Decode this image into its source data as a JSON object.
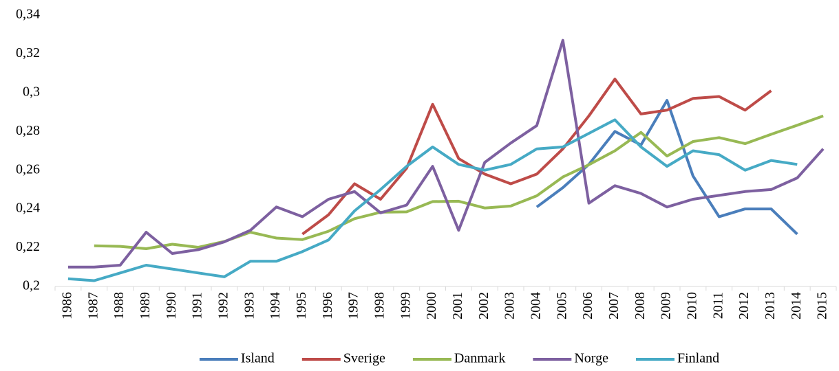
{
  "chart_data": {
    "type": "line",
    "categories": [
      "1986",
      "1987",
      "1988",
      "1989",
      "1990",
      "1991",
      "1992",
      "1993",
      "1994",
      "1995",
      "1996",
      "1997",
      "1998",
      "1999",
      "2000",
      "2001",
      "2002",
      "2003",
      "2004",
      "2005",
      "2006",
      "2007",
      "2008",
      "2009",
      "2010",
      "2011",
      "2012",
      "2013",
      "2014",
      "2015"
    ],
    "series": [
      {
        "name": "Island",
        "color": "#4a7ebb",
        "values": [
          null,
          null,
          null,
          null,
          null,
          null,
          null,
          null,
          null,
          null,
          null,
          null,
          null,
          null,
          null,
          null,
          null,
          null,
          0.241,
          0.251,
          0.263,
          0.28,
          0.273,
          0.296,
          0.257,
          0.236,
          0.24,
          0.24,
          0.227,
          null
        ]
      },
      {
        "name": "Sverige",
        "color": "#be4b48",
        "values": [
          null,
          null,
          null,
          null,
          null,
          null,
          null,
          null,
          null,
          0.227,
          0.237,
          0.253,
          0.245,
          0.261,
          0.294,
          0.266,
          0.258,
          0.253,
          0.258,
          0.271,
          0.288,
          0.307,
          0.289,
          0.291,
          0.297,
          0.298,
          0.291,
          0.301,
          null,
          null
        ]
      },
      {
        "name": "Danmark",
        "color": "#98b954",
        "values": [
          null,
          0.221,
          0.2207,
          0.2195,
          0.2218,
          0.2202,
          0.2232,
          0.228,
          0.225,
          0.2242,
          0.2285,
          0.235,
          0.2383,
          0.2385,
          0.2438,
          0.244,
          0.2405,
          0.2415,
          0.2468,
          0.2565,
          0.2628,
          0.27,
          0.2795,
          0.2673,
          0.2748,
          0.2768,
          0.2737,
          0.2785,
          0.2832,
          0.288
        ]
      },
      {
        "name": "Norge",
        "color": "#7d60a0",
        "values": [
          0.21,
          0.21,
          0.211,
          0.228,
          0.217,
          0.219,
          0.223,
          0.229,
          0.241,
          0.236,
          0.245,
          0.249,
          0.238,
          0.242,
          0.262,
          0.229,
          0.264,
          0.274,
          0.283,
          0.327,
          0.243,
          0.252,
          0.248,
          0.241,
          0.245,
          0.247,
          0.249,
          0.25,
          0.256,
          0.271
        ]
      },
      {
        "name": "Finland",
        "color": "#46aac5",
        "values": [
          0.204,
          0.203,
          0.207,
          0.211,
          0.209,
          0.207,
          0.205,
          0.213,
          0.213,
          0.218,
          0.224,
          0.239,
          0.25,
          0.262,
          0.272,
          0.263,
          0.26,
          0.263,
          0.271,
          0.272,
          0.279,
          0.286,
          0.272,
          0.262,
          0.27,
          0.268,
          0.26,
          0.265,
          0.263,
          null
        ]
      }
    ],
    "ylim": [
      0.2,
      0.34
    ],
    "yticks": [
      {
        "value": 0.2,
        "label": "0,2"
      },
      {
        "value": 0.22,
        "label": "0,22"
      },
      {
        "value": 0.24,
        "label": "0,24"
      },
      {
        "value": 0.26,
        "label": "0,26"
      },
      {
        "value": 0.28,
        "label": "0,28"
      },
      {
        "value": 0.3,
        "label": "0,3"
      },
      {
        "value": 0.32,
        "label": "0,32"
      },
      {
        "value": 0.34,
        "label": "0,34"
      }
    ],
    "grid": false,
    "legend": "bottom"
  }
}
